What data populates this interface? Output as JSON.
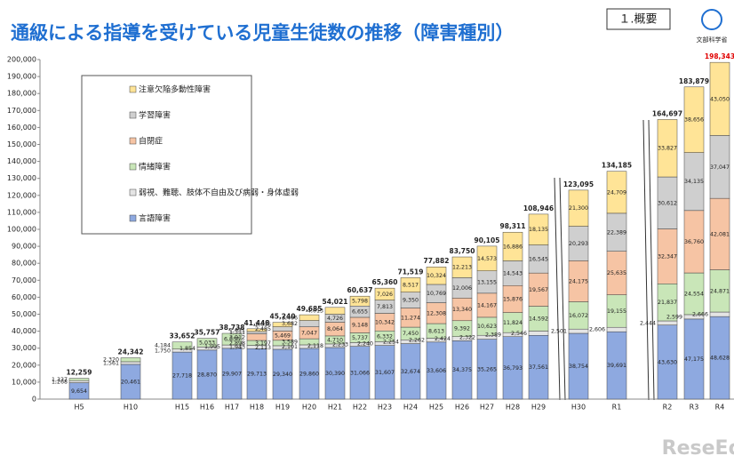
{
  "header": {
    "title": "通級による指導を受けている児童生徒数の推移（障害種別）",
    "section": "１.概要",
    "ministry": "文部科学省",
    "watermark": "ReseEd"
  },
  "chart_data": {
    "type": "bar",
    "stacked": true,
    "categories": [
      "H5",
      "H10",
      "H15",
      "H16",
      "H17",
      "H18",
      "H19",
      "H20",
      "H21",
      "H22",
      "H23",
      "H24",
      "H25",
      "H26",
      "H27",
      "H28",
      "H29",
      "H30",
      "R1",
      "R2",
      "R3",
      "R4"
    ],
    "series": [
      {
        "name": "言語障害",
        "color": "#8ea9e0",
        "values": [
          9654,
          20461,
          27718,
          28870,
          29907,
          29713,
          29340,
          29860,
          30390,
          31066,
          31607,
          32674,
          33606,
          34375,
          35265,
          36793,
          37561,
          38754,
          39691,
          43630,
          47175,
          48628
        ],
        "value_labels": [
          "9,654",
          "20,461",
          "27,718",
          "28,870",
          "29,907",
          "29,713",
          "29,340",
          "29,860",
          "30,390",
          "31,066",
          "31,607",
          "32,674",
          "33,606",
          "34,375",
          "35,265",
          "36,793",
          "37,561",
          "38,754",
          "39,691",
          "43,630",
          "47,175",
          "48,628"
        ]
      },
      {
        "name": "弱視、難聴、肢体不自由及び病弱・身体虚弱",
        "color": "#e4e4e4",
        "values": [
          1268,
          1561,
          1750,
          1854,
          1995,
          1943,
          2113,
          2101,
          2118,
          2233,
          2240,
          2254,
          2262,
          2424,
          2322,
          2389,
          2546,
          2501,
          2606,
          2444,
          2599,
          2666
        ],
        "value_labels": [
          "1,268",
          "1,561",
          "1,750",
          "1,854",
          "1,995",
          "1,943",
          "2,113",
          "2,101",
          "2,118",
          "2,233",
          "2,240",
          "2,254",
          "2,262",
          "2,424",
          "2,322",
          "2,389",
          "2,546",
          "2,501",
          "2,606",
          "2,444",
          "2,599",
          "2,666"
        ]
      },
      {
        "name": "情緒障害",
        "color": "#c9e6b8",
        "values": [
          1337,
          2320,
          4184,
          5033,
          6836,
          2898,
          3197,
          3589,
          4710,
          5737,
          6332,
          7450,
          8613,
          9392,
          10623,
          11824,
          14592,
          16072,
          19155,
          21837,
          24554,
          24871
        ],
        "value_labels": [
          "1,337",
          "2,320",
          "4,184",
          "5,033",
          "6,836",
          "2,898",
          "3,197",
          "3,589",
          "4,710",
          "5,737",
          "6,332",
          "7,450",
          "8,613",
          "9,392",
          "10,623",
          "11,824",
          "14,592",
          "16,072",
          "19,155",
          "21,837",
          "24,554",
          "24,871"
        ]
      },
      {
        "name": "自閉症",
        "color": "#f6c4a4",
        "values": [
          null,
          null,
          null,
          null,
          null,
          3912,
          5469,
          7047,
          8064,
          9148,
          10342,
          11274,
          12308,
          13340,
          14167,
          15876,
          19567,
          24175,
          25635,
          32347,
          36760,
          42081
        ],
        "value_labels": [
          null,
          null,
          null,
          null,
          null,
          "3,912",
          "5,469",
          "7,047",
          "8,064",
          "9,148",
          "10,342",
          "11,274",
          "12,308",
          "13,340",
          "14,167",
          "15,876",
          "19,567",
          "24,175",
          "25,635",
          "32,347",
          "36,760",
          "42,081"
        ]
      },
      {
        "name": "学習障害",
        "color": "#cfcfcf",
        "values": [
          null,
          null,
          null,
          null,
          null,
          1351,
          2485,
          3682,
          4726,
          6655,
          7813,
          9350,
          10769,
          12006,
          13155,
          14543,
          16545,
          20293,
          22389,
          30612,
          34135,
          37047
        ],
        "value_labels": [
          null,
          null,
          null,
          null,
          null,
          "1,351",
          "2,485",
          "3,682",
          "4,726",
          "6,655",
          "7,813",
          "9,350",
          "10,769",
          "12,006",
          "13,155",
          "14,543",
          "16,545",
          "20,293",
          "22,389",
          "30,612",
          "34,135",
          "37,047"
        ]
      },
      {
        "name": "注意欠陥多動性障害",
        "color": "#ffe497",
        "values": [
          null,
          null,
          null,
          null,
          null,
          1631,
          2636,
          3406,
          4013,
          5798,
          7026,
          8517,
          10324,
          12213,
          14573,
          16886,
          18135,
          21300,
          24709,
          33827,
          38656,
          43050
        ],
        "value_labels": [
          null,
          null,
          null,
          null,
          null,
          "1,631",
          "2,636",
          "3,406",
          "4,013",
          "5,798",
          "7,026",
          "8,517",
          "10,324",
          "12,213",
          "14,573",
          "16,886",
          "18,135",
          "21,300",
          "24,709",
          "33,827",
          "38,656",
          "43,050"
        ]
      }
    ],
    "totals": [
      12259,
      24342,
      33652,
      35757,
      38738,
      41448,
      45240,
      49685,
      54021,
      60637,
      65360,
      71519,
      77882,
      83750,
      90105,
      98311,
      108946,
      123095,
      134185,
      164697,
      183879,
      198343
    ],
    "total_labels": [
      "12,259",
      "24,342",
      "33,652",
      "35,757",
      "38,738",
      "41,448",
      "45,240",
      "49,685",
      "54,021",
      "60,637",
      "65,360",
      "71,519",
      "77,882",
      "83,750",
      "90,105",
      "98,311",
      "108,946",
      "123,095",
      "134,185",
      "164,697",
      "183,879",
      "198,343"
    ],
    "ylim": [
      0,
      200000
    ],
    "yticks": [
      0,
      {
        "value": 10000,
        "label": "10,000"
      },
      {
        "value": 20000,
        "label": "20,000"
      },
      {
        "value": 30000,
        "label": "30,000"
      },
      {
        "value": 40000,
        "label": "40,000"
      },
      {
        "value": 50000,
        "label": "50,000"
      },
      {
        "value": 60000,
        "label": "60,000"
      },
      {
        "value": 70000,
        "label": "70,000"
      },
      {
        "value": 80000,
        "label": "80,000"
      },
      {
        "value": 90000,
        "label": "90,000"
      },
      {
        "value": 100000,
        "label": "100,000"
      },
      {
        "value": 110000,
        "label": "110,000"
      },
      {
        "value": 120000,
        "label": "120,000"
      },
      {
        "value": 130000,
        "label": "130,000"
      },
      {
        "value": 140000,
        "label": "140,000"
      },
      {
        "value": 150000,
        "label": "150,000"
      },
      {
        "value": 160000,
        "label": "160,000"
      },
      {
        "value": 170000,
        "label": "170,000"
      },
      {
        "value": 180000,
        "label": "180,000"
      },
      {
        "value": 190000,
        "label": "190,000"
      },
      {
        "value": 200000,
        "label": "200,000"
      }
    ],
    "legend": "upper left"
  }
}
